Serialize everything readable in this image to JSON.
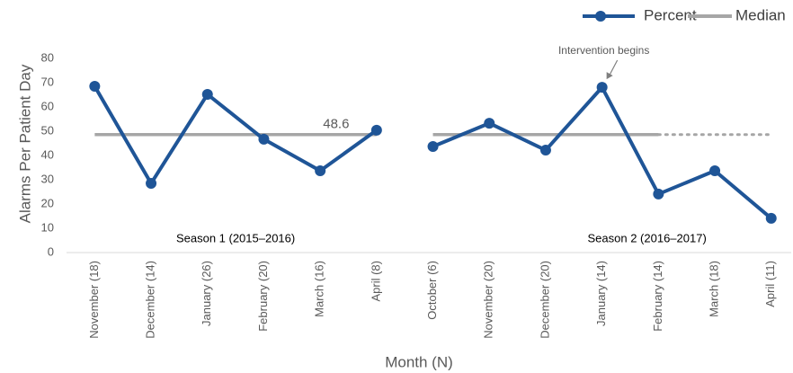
{
  "chart_data": {
    "type": "line",
    "ylabel": "Alarms Per Patient Day",
    "xlabel": "Month (N)",
    "ylim": [
      0,
      80
    ],
    "yticks": [
      0,
      10,
      20,
      30,
      40,
      50,
      60,
      70,
      80
    ],
    "series": [
      {
        "name": "Percent",
        "color": "#1f5597"
      }
    ],
    "median": {
      "name": "Median",
      "value": 48.6,
      "color": "#a6a6a6"
    },
    "seasons": [
      {
        "label": "Season 1 (2015–2016)",
        "categories": [
          "November (18)",
          "December (14)",
          "January (26)",
          "February (20)",
          "March (16)",
          "April (8)"
        ],
        "values": [
          68.5,
          28.5,
          65.2,
          46.7,
          33.7,
          50.4
        ]
      },
      {
        "label": "Season 2 (2016–2017)",
        "categories": [
          "October (6)",
          "November (20)",
          "December (20)",
          "January (14)",
          "February (14)",
          "March (18)",
          "April (11)"
        ],
        "values": [
          43.7,
          53.3,
          42.2,
          68.1,
          24.1,
          33.7,
          14.1
        ]
      }
    ],
    "annotation": {
      "text": "Intervention begins",
      "season": 1,
      "index": 3
    }
  }
}
